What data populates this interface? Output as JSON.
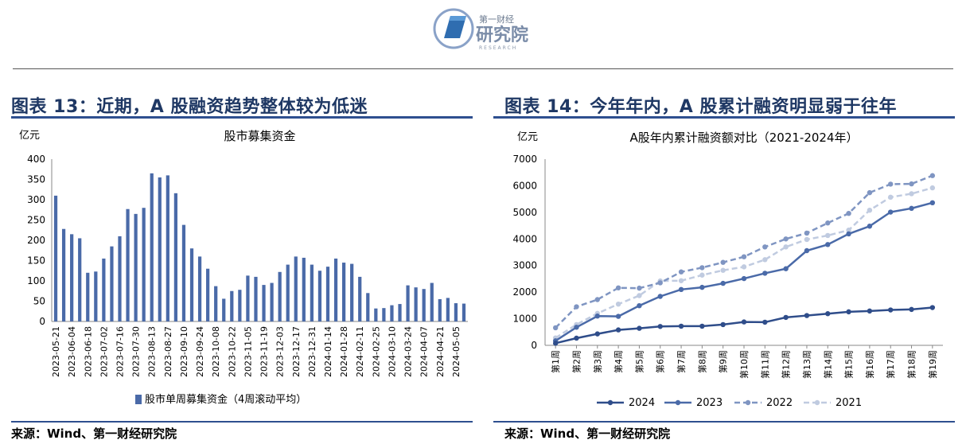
{
  "header": {
    "logo_small": "第一财经",
    "logo_big": "研究院",
    "logo_sub": "RESEARCH"
  },
  "left": {
    "title": "图表 13：近期，A 股融资趋势整体较为低迷",
    "source": "来源：Wind、第一财经研究院"
  },
  "right": {
    "title": "图表 14：今年年内，A 股累计融资明显弱于往年",
    "source": "来源：Wind、第一财经研究院"
  },
  "chart_data": [
    {
      "type": "bar",
      "title": "股市募集资金",
      "ylabel": "亿元",
      "ylim": [
        0,
        400
      ],
      "yticks": [
        0,
        50,
        100,
        150,
        200,
        250,
        300,
        350,
        400
      ],
      "x_tick_labels": [
        "2023-05-21",
        "2023-06-04",
        "2023-06-18",
        "2023-07-02",
        "2023-07-16",
        "2023-07-30",
        "2023-08-13",
        "2023-08-27",
        "2023-09-10",
        "2023-09-24",
        "2023-10-08",
        "2023-10-22",
        "2023-11-05",
        "2023-11-19",
        "2023-12-03",
        "2023-12-17",
        "2023-12-31",
        "2024-01-14",
        "2024-01-28",
        "2024-02-11",
        "2024-02-25",
        "2024-03-10",
        "2024-03-24",
        "2024-04-07",
        "2024-04-21",
        "2024-05-05"
      ],
      "values": [
        310,
        228,
        215,
        205,
        120,
        123,
        155,
        185,
        210,
        277,
        265,
        280,
        365,
        355,
        360,
        316,
        238,
        180,
        160,
        130,
        87,
        56,
        75,
        78,
        113,
        110,
        90,
        95,
        122,
        140,
        160,
        157,
        140,
        125,
        135,
        155,
        145,
        142,
        110,
        70,
        32,
        33,
        40,
        43,
        89,
        84,
        80,
        95,
        55,
        58,
        45,
        44
      ],
      "series": [
        {
          "name": "股市单周募集资金（4周滚动平均）",
          "color": "#4a6aa8"
        }
      ],
      "grid": false
    },
    {
      "type": "line",
      "title": "A股年内累计融资额对比（2021-2024年）",
      "ylabel": "亿元",
      "ylim": [
        0,
        7000
      ],
      "yticks": [
        0,
        1000,
        2000,
        3000,
        4000,
        5000,
        6000,
        7000
      ],
      "categories": [
        "第1周",
        "第2周",
        "第3周",
        "第4周",
        "第5周",
        "第6周",
        "第7周",
        "第8周",
        "第9周",
        "第10周",
        "第11周",
        "第12周",
        "第13周",
        "第14周",
        "第15周",
        "第16周",
        "第17周",
        "第18周",
        "第19周"
      ],
      "series": [
        {
          "name": "2024",
          "style": "solid",
          "color": "#2f4d8a",
          "values": [
            80,
            270,
            430,
            580,
            640,
            710,
            720,
            720,
            780,
            880,
            870,
            1050,
            1120,
            1190,
            1260,
            1290,
            1330,
            1350,
            1420
          ]
        },
        {
          "name": "2023",
          "style": "solid",
          "color": "#4a6aa8",
          "values": [
            170,
            680,
            1100,
            1090,
            1490,
            1840,
            2100,
            2180,
            2330,
            2510,
            2710,
            2880,
            3560,
            3790,
            4190,
            4480,
            5010,
            5150,
            5360
          ]
        },
        {
          "name": "2022",
          "style": "dashed",
          "color": "#7f95c2",
          "values": [
            660,
            1450,
            1720,
            2160,
            2150,
            2350,
            2760,
            2920,
            3120,
            3330,
            3700,
            4000,
            4220,
            4600,
            4960,
            5740,
            6060,
            6070,
            6380
          ]
        },
        {
          "name": "2021",
          "style": "dashed",
          "color": "#c0cbe0",
          "values": [
            280,
            780,
            1200,
            1550,
            1870,
            2420,
            2430,
            2640,
            2820,
            2950,
            3220,
            3700,
            3980,
            4130,
            4330,
            5080,
            5570,
            5700,
            5920
          ]
        }
      ],
      "legend_position": "bottom",
      "grid": false
    }
  ]
}
